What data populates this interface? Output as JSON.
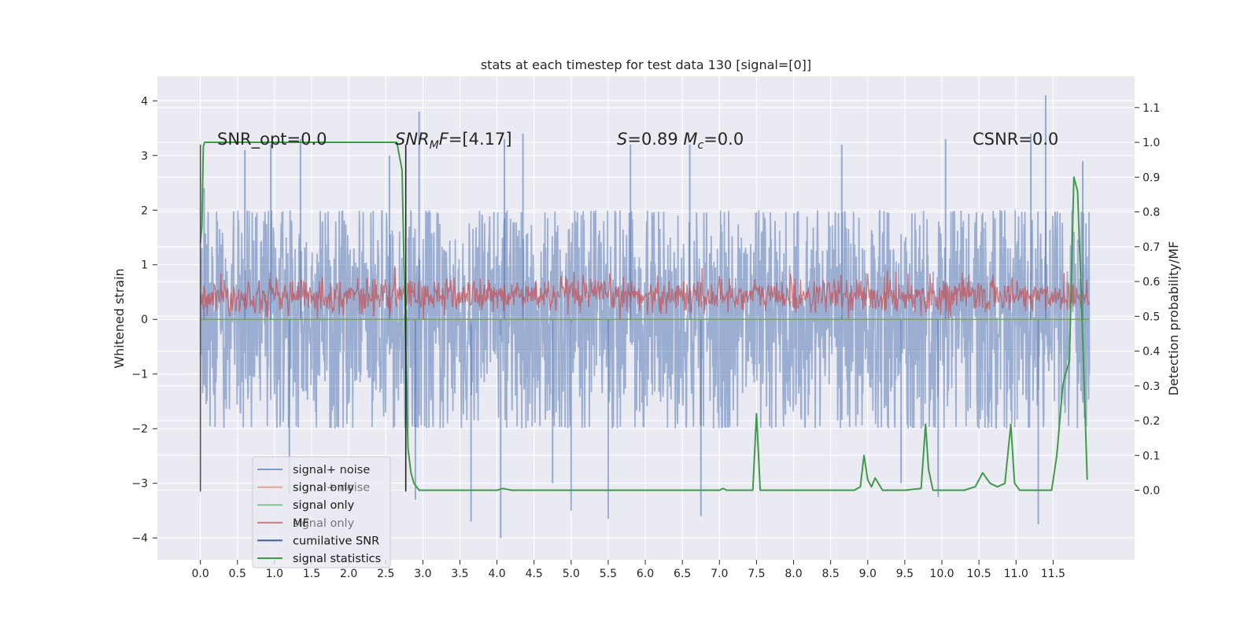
{
  "chart_data": {
    "type": "line",
    "title": "stats at each timestep for test data 130 [signal=[0]]",
    "xlabel": "",
    "ylabel": "Whitened strain",
    "y2label": "Detection probability/MF",
    "xlim": [
      -0.58,
      12.6
    ],
    "ylim": [
      -4.4,
      4.45
    ],
    "y2lim": [
      -0.2,
      1.19
    ],
    "xticks": [
      0.0,
      0.5,
      1.0,
      1.5,
      2.0,
      2.5,
      3.0,
      3.5,
      4.0,
      4.5,
      5.0,
      5.5,
      6.0,
      6.5,
      7.0,
      7.5,
      8.0,
      8.5,
      9.0,
      9.5,
      10.0,
      10.5,
      11.0,
      11.5
    ],
    "xtick_labels": [
      "0.0",
      "0.5",
      "1.0",
      "1.5",
      "2.0",
      "2.5",
      "3.0",
      "3.5",
      "4.0",
      "4.5",
      "5.0",
      "5.5",
      "6.0",
      "6.5",
      "7.0",
      "7.5",
      "8.0",
      "8.5",
      "9.0",
      "9.5",
      "10.0",
      "10.5",
      "11.0",
      "11.5"
    ],
    "yticks": [
      -4,
      -3,
      -2,
      -1,
      0,
      1,
      2,
      3,
      4
    ],
    "ytick_labels": [
      "−4",
      "−3",
      "−2",
      "−1",
      "0",
      "1",
      "2",
      "3",
      "4"
    ],
    "y2ticks": [
      0.0,
      0.1,
      0.2,
      0.3,
      0.4,
      0.5,
      0.6,
      0.7,
      0.8,
      0.9,
      1.0,
      1.1
    ],
    "y2tick_labels": [
      "0.0",
      "0.1",
      "0.2",
      "0.3",
      "0.4",
      "0.5",
      "0.6",
      "0.7",
      "0.8",
      "0.9",
      "1.0",
      "1.1"
    ],
    "grid": true,
    "legend_position": "lower-left",
    "annotations": [
      {
        "id": "snr-opt",
        "text": "SNR_opt=0.0",
        "x": 0.2,
        "y": 3.3
      },
      {
        "id": "snr-mf",
        "text": "SNR_MF=[4.17]",
        "x": 2.6,
        "y": 3.3
      },
      {
        "id": "s-mc",
        "text": "S=0.89   M_c=0.0",
        "x": 5.6,
        "y": 3.3
      },
      {
        "id": "csnr",
        "text": "CSNR=0.0",
        "x": 10.4,
        "y": 3.3
      }
    ],
    "series": [
      {
        "name": "signal+ noise",
        "color": "#4c72b0",
        "axis": "left",
        "style": "noise band",
        "x_range": [
          0.0,
          11.99
        ],
        "typical_range": [
          -2.0,
          2.0
        ],
        "extremes": [
          -4.0,
          4.1
        ],
        "peaks": [
          {
            "x": 0.05,
            "y": 2.4
          },
          {
            "x": 0.6,
            "y": 3.1
          },
          {
            "x": 0.95,
            "y": 3.2
          },
          {
            "x": 1.35,
            "y": 3.3
          },
          {
            "x": 2.55,
            "y": 3.0
          },
          {
            "x": 2.95,
            "y": 3.8
          },
          {
            "x": 4.1,
            "y": 3.3
          },
          {
            "x": 4.35,
            "y": 3.4
          },
          {
            "x": 5.8,
            "y": 3.2
          },
          {
            "x": 6.6,
            "y": 3.2
          },
          {
            "x": 8.65,
            "y": 3.2
          },
          {
            "x": 10.05,
            "y": 3.3
          },
          {
            "x": 11.2,
            "y": 3.4
          },
          {
            "x": 11.4,
            "y": 4.1
          },
          {
            "x": 11.9,
            "y": 2.9
          }
        ],
        "troughs": [
          {
            "x": 1.2,
            "y": -3.2
          },
          {
            "x": 2.9,
            "y": -3.3
          },
          {
            "x": 3.65,
            "y": -3.7
          },
          {
            "x": 4.05,
            "y": -4.0
          },
          {
            "x": 4.75,
            "y": -3.0
          },
          {
            "x": 5.0,
            "y": -3.5
          },
          {
            "x": 5.5,
            "y": -3.65
          },
          {
            "x": 6.75,
            "y": -3.6
          },
          {
            "x": 9.45,
            "y": -3.0
          },
          {
            "x": 9.95,
            "y": -3.25
          },
          {
            "x": 11.3,
            "y": -3.75
          }
        ]
      },
      {
        "name": "signal only",
        "color": "#dd8452",
        "axis": "left",
        "x": [
          0.0,
          11.99
        ],
        "y": [
          0.0,
          0.0
        ]
      },
      {
        "name": "signal only",
        "color": "#55a868",
        "axis": "left",
        "x": [
          0.0,
          11.99
        ],
        "y": [
          0.0,
          0.0
        ]
      },
      {
        "name": "MF",
        "color": "#c44e52",
        "axis": "right",
        "style": "noise band",
        "x_range": [
          0.0,
          11.99
        ],
        "center": 0.56,
        "typical_range": [
          0.5,
          0.62
        ],
        "extremes": [
          0.49,
          0.69
        ]
      },
      {
        "name": "cumilative SNR",
        "color": "#3b5c9e",
        "axis": "left",
        "x": [],
        "y": []
      },
      {
        "name": "signal statistics",
        "color": "#3f9b4a",
        "axis": "right",
        "x": [
          0.0,
          0.02,
          0.04,
          0.06,
          0.08,
          0.12,
          0.5,
          1.0,
          1.5,
          2.0,
          2.5,
          2.65,
          2.72,
          2.76,
          2.8,
          2.84,
          2.88,
          2.95,
          3.05,
          3.5,
          4.0,
          4.08,
          4.2,
          4.5,
          5.0,
          6.0,
          7.0,
          7.05,
          7.1,
          7.3,
          7.45,
          7.5,
          7.55,
          8.0,
          8.5,
          8.82,
          8.9,
          8.95,
          9.0,
          9.05,
          9.1,
          9.2,
          9.3,
          9.5,
          9.72,
          9.78,
          9.82,
          9.88,
          9.94,
          10.0,
          10.3,
          10.45,
          10.55,
          10.65,
          10.75,
          10.85,
          10.93,
          10.98,
          11.05,
          11.15,
          11.3,
          11.48,
          11.55,
          11.63,
          11.66,
          11.72,
          11.78,
          11.83,
          11.89,
          11.96
        ],
        "y": [
          0.71,
          0.76,
          0.99,
          1.0,
          1.0,
          1.0,
          1.0,
          1.0,
          1.0,
          1.0,
          1.0,
          1.0,
          0.92,
          0.5,
          0.12,
          0.05,
          0.02,
          0.0,
          0.0,
          0.0,
          0.0,
          0.005,
          0.0,
          0.0,
          0.0,
          0.0,
          0.0,
          0.005,
          0.0,
          0.0,
          0.0,
          0.22,
          0.0,
          0.0,
          0.0,
          0.0,
          0.01,
          0.1,
          0.03,
          0.01,
          0.035,
          0.0,
          0.0,
          0.0,
          0.005,
          0.19,
          0.06,
          0.0,
          0.0,
          0.0,
          0.0,
          0.01,
          0.05,
          0.02,
          0.01,
          0.02,
          0.19,
          0.02,
          0.0,
          0.0,
          0.0,
          0.0,
          0.1,
          0.3,
          0.33,
          0.37,
          0.9,
          0.86,
          0.5,
          0.03
        ]
      }
    ],
    "vertical_markers": [
      {
        "name": "start marker",
        "x": 0.0,
        "y": [
          -3.15,
          3.2
        ],
        "color": "#555555"
      },
      {
        "name": "detection marker",
        "x": 2.77,
        "y": [
          -3.15,
          3.2
        ],
        "color": "#222222"
      }
    ]
  },
  "legend": {
    "entries": [
      {
        "label": "signal+ noise",
        "color": "#7e98cc"
      },
      {
        "label": "signal only",
        "color": "#e0a48a"
      },
      {
        "label": "signal only",
        "color": "#88c090"
      },
      {
        "label": "MF",
        "color": "#c97b82"
      },
      {
        "label": "cumilative SNR",
        "color": "#3b5c9e"
      },
      {
        "label": "signal statistics",
        "color": "#3f9b4a"
      }
    ],
    "ghost_labels": [
      "signal+ noise",
      "signal only",
      "signal only",
      "cumilative SNR",
      "signal statistics"
    ]
  },
  "colors": {
    "plot_background": "#eaeaf2",
    "grid": "#ffffff",
    "noise": "#4c72b0",
    "mf": "#c44e52",
    "stats": "#3f9b4a"
  }
}
